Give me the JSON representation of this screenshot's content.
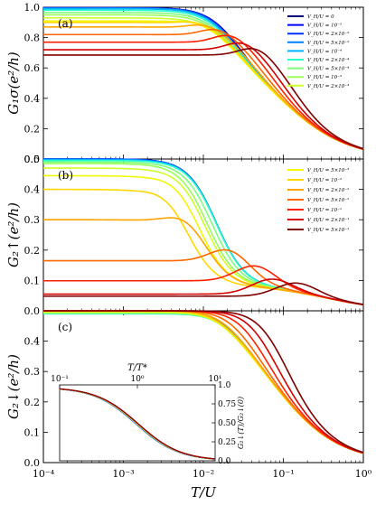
{
  "chart_data": [
    {
      "panel": "(a)",
      "type": "line",
      "xscale": "log",
      "xlim": [
        0.0001,
        1
      ],
      "ylim": [
        0,
        1.0
      ],
      "xticks": [
        "10⁻⁴",
        "10⁻³",
        "10⁻²",
        "10⁻¹",
        "10⁰"
      ],
      "yticks": [
        "0.0",
        "0.2",
        "0.4",
        "0.6",
        "0.8",
        "1.0"
      ],
      "ylabel": "G₁σ(e²/h)",
      "legend_position": "top-right",
      "series": [
        {
          "name": "V_H/U = 0",
          "color": "#00007f",
          "plateau": 0.997,
          "tc": 0.0095
        },
        {
          "name": "V_H/U = 10⁻⁵",
          "color": "#0000ff",
          "plateau": 0.996,
          "tc": 0.0093
        },
        {
          "name": "V_H/U = 2×10⁻⁵",
          "color": "#0030ff",
          "plateau": 0.995,
          "tc": 0.0091
        },
        {
          "name": "V_H/U = 5×10⁻⁵",
          "color": "#0080ff",
          "plateau": 0.994,
          "tc": 0.0089
        },
        {
          "name": "V_H/U = 10⁻⁴",
          "color": "#00b5ff",
          "plateau": 0.99,
          "tc": 0.0087
        },
        {
          "name": "V_H/U = 2×10⁻⁴",
          "color": "#29ffce",
          "plateau": 0.98,
          "tc": 0.0084
        },
        {
          "name": "V_H/U = 5×10⁻⁴",
          "color": "#7dff7a",
          "plateau": 0.965,
          "tc": 0.0081
        },
        {
          "name": "V_H/U = 10⁻³",
          "color": "#9aff5a",
          "plateau": 0.95,
          "tc": 0.0079
        },
        {
          "name": "V_H/U = 2×10⁻³",
          "color": "#ceff29",
          "plateau": 0.93,
          "tc": 0.0078
        },
        {
          "name": "V_H/U = 5×10⁻³",
          "color": "#f4f802",
          "plateau": 0.91,
          "tc": 0.0082,
          "bump": 0.01,
          "bump_at": 0.002
        },
        {
          "name": "V_H/U = 10⁻²",
          "color": "#ffd700",
          "plateau": 0.9,
          "tc": 0.009,
          "bump": 0.02,
          "bump_at": 0.003
        },
        {
          "name": "V_H/U = 2×10⁻²",
          "color": "#ffa400",
          "plateau": 0.87,
          "tc": 0.0115,
          "bump": 0.03,
          "bump_at": 0.004
        },
        {
          "name": "V_H/U = 5×10⁻²",
          "color": "#ff6800",
          "plateau": 0.82,
          "tc": 0.016,
          "bump": 0.05,
          "bump_at": 0.006
        },
        {
          "name": "V_H/U = 10⁻¹",
          "color": "#ff2000",
          "plateau": 0.77,
          "tc": 0.023,
          "bump": 0.06,
          "bump_at": 0.01
        },
        {
          "name": "V_H/U = 2×10⁻¹",
          "color": "#d40000",
          "plateau": 0.72,
          "tc": 0.033,
          "bump": 0.06,
          "bump_at": 0.015
        },
        {
          "name": "V_H/U = 5×10⁻¹",
          "color": "#7f0000",
          "plateau": 0.685,
          "tc": 0.048,
          "bump": 0.06,
          "bump_at": 0.02
        }
      ]
    },
    {
      "panel": "(b)",
      "type": "line",
      "xscale": "log",
      "xlim": [
        0.0001,
        1
      ],
      "ylim": [
        0,
        0.5
      ],
      "xticks": [
        "10⁻⁴",
        "10⁻³",
        "10⁻²",
        "10⁻¹",
        "10⁰"
      ],
      "yticks": [
        "0.0",
        "0.1",
        "0.2",
        "0.3",
        "0.4",
        "0.5"
      ],
      "ylabel": "G₂↑(e²/h)",
      "legend_position": "top-right",
      "series": [
        {
          "name": "V_H/U = 0",
          "color": "#00007f",
          "plateau": 0.5,
          "peak": 0.0,
          "tp": 0.009
        },
        {
          "name": "V_H/U = 10⁻⁵",
          "color": "#0000ff",
          "plateau": 0.5,
          "peak": 0.0,
          "tp": 0.009
        },
        {
          "name": "V_H/U = 2×10⁻⁵",
          "color": "#0030ff",
          "plateau": 0.5,
          "peak": 0.0,
          "tp": 0.009
        },
        {
          "name": "V_H/U = 5×10⁻⁵",
          "color": "#0080ff",
          "plateau": 0.499,
          "peak": 0.0,
          "tp": 0.009
        },
        {
          "name": "V_H/U = 10⁻⁴",
          "color": "#00b5ff",
          "plateau": 0.497,
          "peak": 0.0,
          "tp": 0.009
        },
        {
          "name": "V_H/U = 2×10⁻⁴",
          "color": "#29ffce",
          "plateau": 0.495,
          "peak": 0.0,
          "tp": 0.009
        },
        {
          "name": "V_H/U = 5×10⁻⁴",
          "color": "#7dff7a",
          "plateau": 0.49,
          "peak": 0.002,
          "tp": 0.008
        },
        {
          "name": "V_H/U = 10⁻³",
          "color": "#9aff5a",
          "plateau": 0.485,
          "peak": 0.004,
          "tp": 0.007
        },
        {
          "name": "V_H/U = 2×10⁻³",
          "color": "#ceff29",
          "plateau": 0.47,
          "peak": 0.008,
          "tp": 0.0065
        },
        {
          "name": "V_H/U = 5×10⁻³",
          "color": "#f4f802",
          "plateau": 0.445,
          "peak": 0.015,
          "tp": 0.0055
        },
        {
          "name": "V_H/U = 10⁻²",
          "color": "#ffd700",
          "plateau": 0.4,
          "peak": 0.018,
          "tp": 0.004
        },
        {
          "name": "V_H/U = 2×10⁻²",
          "color": "#ffa400",
          "plateau": 0.3,
          "peak": 0.038,
          "tp": 0.0065
        },
        {
          "name": "V_H/U = 5×10⁻²",
          "color": "#ff6800",
          "plateau": 0.165,
          "peak": 0.053,
          "tp": 0.022
        },
        {
          "name": "V_H/U = 10⁻¹",
          "color": "#ff2000",
          "plateau": 0.099,
          "peak": 0.054,
          "tp": 0.045
        },
        {
          "name": "V_H/U = 2×10⁻¹",
          "color": "#d40000",
          "plateau": 0.055,
          "peak": 0.045,
          "tp": 0.07
        },
        {
          "name": "V_H/U = 5×10⁻¹",
          "color": "#7f0000",
          "plateau": 0.048,
          "peak": 0.04,
          "tp": 0.14
        }
      ]
    },
    {
      "panel": "(c)",
      "type": "line",
      "xscale": "log",
      "xlim": [
        0.0001,
        1
      ],
      "ylim": [
        0,
        0.5
      ],
      "xticks": [
        "10⁻⁴",
        "10⁻³",
        "10⁻²",
        "10⁻¹",
        "10⁰"
      ],
      "yticks": [
        "0.0",
        "0.1",
        "0.2",
        "0.3",
        "0.4"
      ],
      "xlabel": "T/U",
      "ylabel": "G₂↓(e²/h)",
      "series": [
        {
          "name": "V_H/U = 0",
          "color": "#00007f",
          "plateau": 0.497,
          "tc": 0.0095
        },
        {
          "name": "V_H/U = 10⁻⁵",
          "color": "#0000ff",
          "plateau": 0.496,
          "tc": 0.0093
        },
        {
          "name": "V_H/U = 2×10⁻⁵",
          "color": "#0030ff",
          "plateau": 0.495,
          "tc": 0.0091
        },
        {
          "name": "V_H/U = 5×10⁻⁵",
          "color": "#0080ff",
          "plateau": 0.494,
          "tc": 0.009
        },
        {
          "name": "V_H/U = 10⁻⁴",
          "color": "#00b5ff",
          "plateau": 0.492,
          "tc": 0.0088
        },
        {
          "name": "V_H/U = 2×10⁻⁴",
          "color": "#29ffce",
          "plateau": 0.49,
          "tc": 0.0086
        },
        {
          "name": "V_H/U = 5×10⁻⁴",
          "color": "#7dff7a",
          "plateau": 0.492,
          "tc": 0.0083
        },
        {
          "name": "V_H/U = 10⁻³",
          "color": "#9aff5a",
          "plateau": 0.494,
          "tc": 0.008
        },
        {
          "name": "V_H/U = 2×10⁻³",
          "color": "#ceff29",
          "plateau": 0.496,
          "tc": 0.0078
        },
        {
          "name": "V_H/U = 5×10⁻³",
          "color": "#f4f802",
          "plateau": 0.498,
          "tc": 0.0079
        },
        {
          "name": "V_H/U = 10⁻²",
          "color": "#ffd700",
          "plateau": 0.499,
          "tc": 0.0082
        },
        {
          "name": "V_H/U = 2×10⁻²",
          "color": "#ffa400",
          "plateau": 0.5,
          "tc": 0.0095
        },
        {
          "name": "V_H/U = 5×10⁻²",
          "color": "#ff6800",
          "plateau": 0.5,
          "tc": 0.013
        },
        {
          "name": "V_H/U = 10⁻¹",
          "color": "#ff2000",
          "plateau": 0.5,
          "tc": 0.019
        },
        {
          "name": "V_H/U = 2×10⁻¹",
          "color": "#d40000",
          "plateau": 0.5,
          "tc": 0.028
        },
        {
          "name": "V_H/U = 5×10⁻¹",
          "color": "#7f0000",
          "plateau": 0.5,
          "tc": 0.042
        }
      ],
      "inset": {
        "type": "line",
        "xscale": "log",
        "xlim": [
          0.1,
          10
        ],
        "ylim": [
          0,
          1.0
        ],
        "xlabel": "T/T*",
        "ylabel": "G₂↓(T)/G₂↓(0)",
        "xticks": [
          "10⁻¹",
          "10⁰",
          "10¹"
        ],
        "yticks": [
          "0.0",
          "0.25",
          "0.50",
          "0.75",
          "1.0"
        ]
      }
    }
  ],
  "legends": {
    "a": [
      "V_H/U = 0",
      "V_H/U = 10⁻⁵",
      "V_H/U = 2×10⁻⁵",
      "V_H/U = 5×10⁻⁵",
      "V_H/U = 10⁻⁴",
      "V_H/U = 2×10⁻⁴",
      "V_H/U = 5×10⁻⁴",
      "V_H/U = 10⁻³",
      "V_H/U = 2×10⁻³"
    ],
    "a_colors": [
      "#00007f",
      "#0000ff",
      "#0030ff",
      "#0080ff",
      "#00b5ff",
      "#29ffce",
      "#7dff7a",
      "#9aff5a",
      "#ceff29"
    ],
    "b": [
      "V_H/U = 5×10⁻³",
      "V_H/U = 10⁻²",
      "V_H/U = 2×10⁻²",
      "V_H/U = 5×10⁻²",
      "V_H/U = 10⁻¹",
      "V_H/U = 2×10⁻¹",
      "V_H/U = 5×10⁻¹"
    ],
    "b_colors": [
      "#f4f802",
      "#ffd700",
      "#ffa400",
      "#ff6800",
      "#ff2000",
      "#d40000",
      "#7f0000"
    ]
  }
}
